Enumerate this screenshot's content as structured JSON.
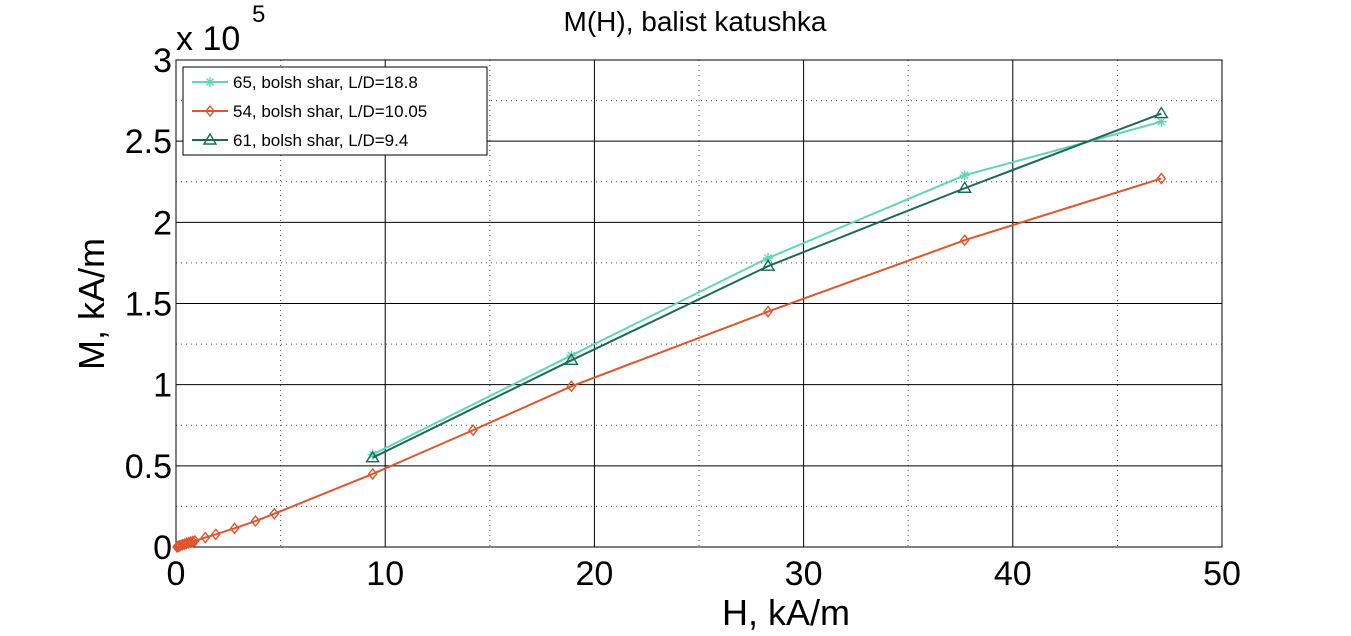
{
  "chart_data": {
    "type": "line",
    "title": "M(H), balist katushka",
    "xlabel": "H, kA/m",
    "ylabel": "M, kA/m",
    "xlim": [
      0,
      50
    ],
    "ylim": [
      0,
      3
    ],
    "y_multiplier_label": {
      "base": "x 10",
      "exponent": "5"
    },
    "x_ticks": [
      "0",
      "10",
      "20",
      "30",
      "40",
      "50"
    ],
    "y_ticks": [
      "0",
      "0.5",
      "1",
      "1.5",
      "2",
      "2.5",
      "3"
    ],
    "grid": true,
    "minor_grid": true,
    "legend_position": "top-left",
    "series": [
      {
        "name": "65, bolsh shar, L/D=18.8",
        "color": "#5fd7b6",
        "marker": "star",
        "x": [
          9.4,
          18.9,
          28.3,
          37.7,
          47.1
        ],
        "y": [
          0.57,
          1.18,
          1.78,
          2.29,
          2.62
        ]
      },
      {
        "name": "54, bolsh shar, L/D=10.05",
        "color": "#e0552c",
        "marker": "diamond",
        "x": [
          0.05,
          0.1,
          0.15,
          0.2,
          0.3,
          0.4,
          0.5,
          0.6,
          0.7,
          0.8,
          0.9,
          1.4,
          1.9,
          2.8,
          3.8,
          4.7,
          9.4,
          14.2,
          18.9,
          28.3,
          37.7,
          47.1
        ],
        "y": [
          0.0,
          0.003,
          0.006,
          0.009,
          0.014,
          0.018,
          0.022,
          0.026,
          0.03,
          0.034,
          0.038,
          0.058,
          0.078,
          0.115,
          0.16,
          0.205,
          0.45,
          0.72,
          0.99,
          1.45,
          1.89,
          2.27
        ]
      },
      {
        "name": "61, bolsh shar, L/D=9.4",
        "color": "#1b6b53",
        "marker": "triangle",
        "x": [
          9.4,
          18.9,
          28.3,
          37.7,
          47.1
        ],
        "y": [
          0.55,
          1.15,
          1.73,
          2.21,
          2.67
        ]
      }
    ]
  }
}
